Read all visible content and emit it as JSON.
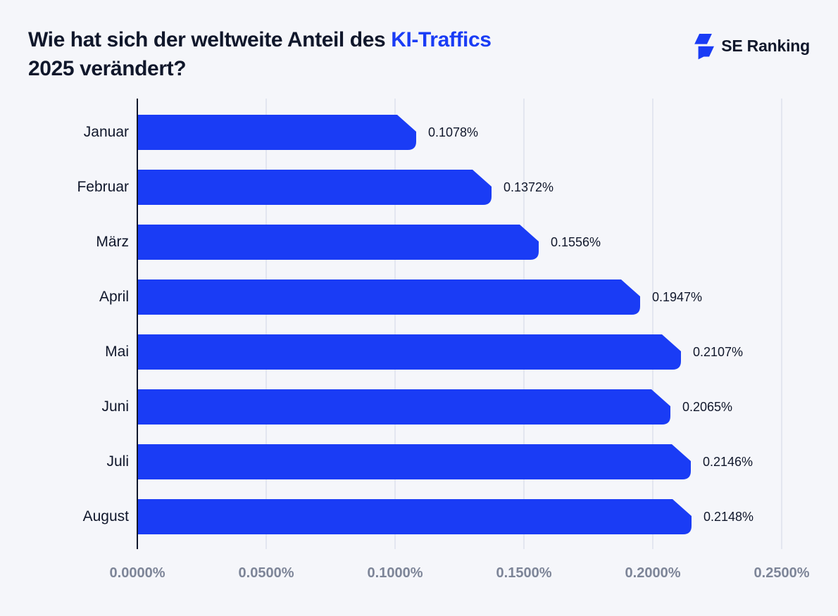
{
  "theme": {
    "background": "#f5f6fa",
    "accent": "#1a3cf5",
    "text_dark": "#10172b",
    "muted": "#7d8598",
    "gridline": "#e3e6f0"
  },
  "title": {
    "line1_prefix": "Wie hat sich der weltweite Anteil des ",
    "highlight": "KI-Traffics",
    "line2": "2025 verändert?"
  },
  "logo": {
    "text": "SE Ranking",
    "icon": "se-ranking-bolt-icon",
    "icon_color": "#1a3cf5"
  },
  "chart_data": {
    "type": "bar",
    "orientation": "horizontal",
    "title": "Wie hat sich der weltweite Anteil des KI-Traffics 2025 verändert?",
    "xlabel": "",
    "ylabel": "",
    "categories": [
      "Januar",
      "Februar",
      "März",
      "April",
      "Mai",
      "Juni",
      "Juli",
      "August"
    ],
    "values": [
      0.1078,
      0.1372,
      0.1556,
      0.1947,
      0.2107,
      0.2065,
      0.2146,
      0.2148
    ],
    "value_labels": [
      "0.1078%",
      "0.1372%",
      "0.1556%",
      "0.1947%",
      "0.2107%",
      "0.2065%",
      "0.2146%",
      "0.2148%"
    ],
    "unit": "%",
    "xlim": [
      0,
      0.25
    ],
    "x_tick_values": [
      0,
      0.05,
      0.1,
      0.15,
      0.2,
      0.25
    ],
    "x_ticks": [
      "0.0000%",
      "0.0500%",
      "0.1000%",
      "0.1500%",
      "0.2000%",
      "0.2500%"
    ],
    "grid": true,
    "legend": false,
    "bar_color": "#1a3cf5"
  }
}
